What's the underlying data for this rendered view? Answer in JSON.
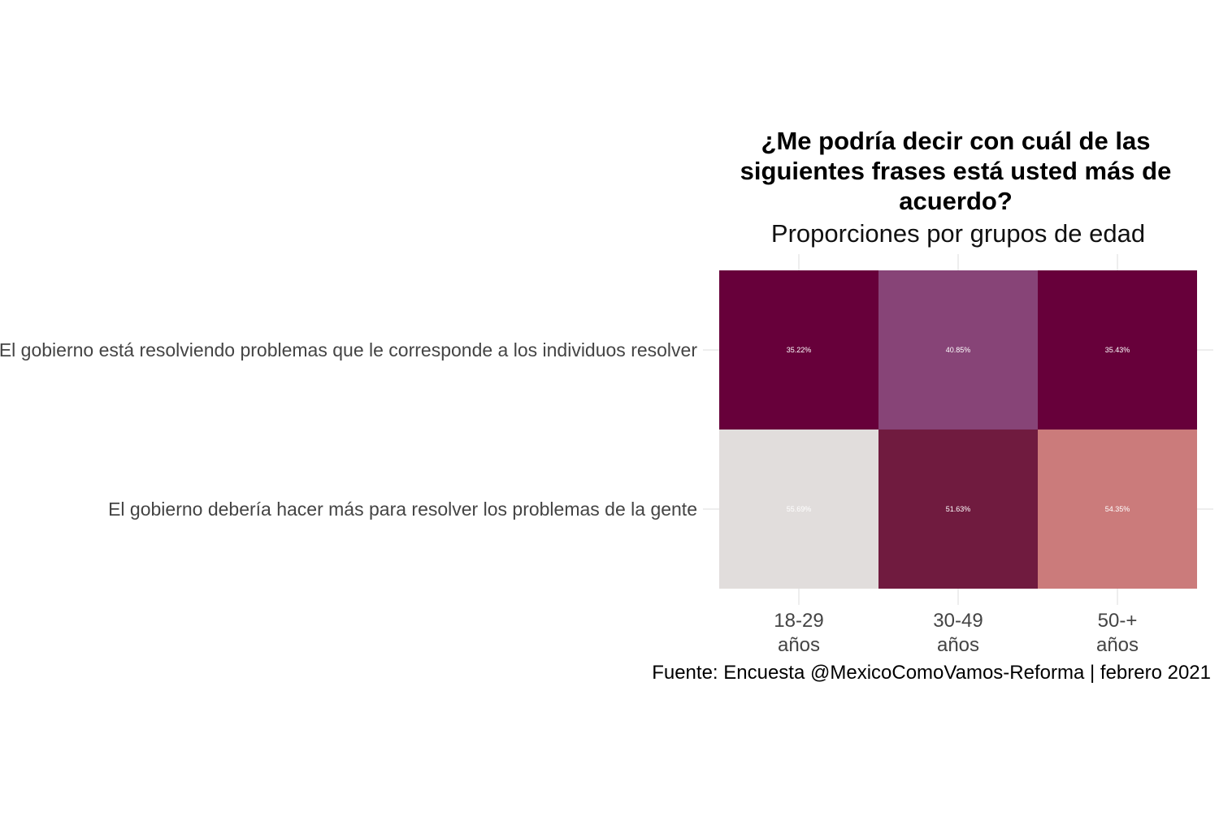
{
  "chart_data": {
    "type": "heatmap",
    "title": "¿Me podría decir con cuál de las siguientes frases está usted más de acuerdo?",
    "title_lines": [
      "¿Me podría decir con cuál de las",
      "siguientes frases está usted más de",
      "acuerdo?"
    ],
    "subtitle": "Proporciones por grupos de edad",
    "caption": "Fuente: Encuesta @MexicoComoVamos-Reforma | febrero 2021",
    "x_categories": [
      {
        "line1": "18-29",
        "line2": "años"
      },
      {
        "line1": "30-49",
        "line2": "años"
      },
      {
        "line1": "50-+",
        "line2": "años"
      }
    ],
    "y_categories": [
      "El gobierno está resolviendo problemas que le corresponde a los individuos resolver",
      "El gobierno debería hacer más para resolver los problemas de la gente"
    ],
    "values": [
      [
        35.22,
        40.85,
        35.43
      ],
      [
        55.69,
        51.63,
        54.35
      ]
    ],
    "labels": [
      [
        "35.22%",
        "40.85%",
        "35.43%"
      ],
      [
        "55.69%",
        "51.63%",
        "54.35%"
      ]
    ],
    "colors": [
      [
        "#67003a",
        "#874477",
        "#67003a"
      ],
      [
        "#e1dddc",
        "#701b3f",
        "#cb7b7b"
      ]
    ],
    "grid": true,
    "legend": "none"
  }
}
